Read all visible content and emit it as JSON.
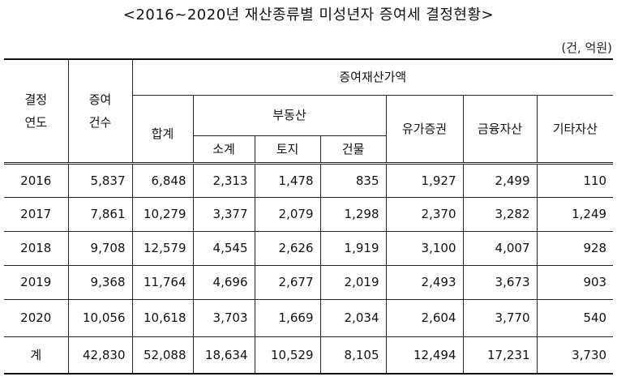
{
  "title": "<2016~2020년 재산종류별 미성년자 증여세 결정현황>",
  "unit": "(건, 억원)",
  "headers": {
    "year": [
      "결정",
      "연도"
    ],
    "count": [
      "증여",
      "건수"
    ],
    "property_value": "증여재산가액",
    "total": "합계",
    "real_estate": "부동산",
    "subtotal": "소계",
    "land": "토지",
    "building": "건물",
    "securities": "유가증권",
    "financial": "금융자산",
    "other": "기타자산"
  },
  "rows": [
    {
      "year": "2016",
      "count": "5,837",
      "total": "6,848",
      "subtotal": "2,313",
      "land": "1,478",
      "building": "835",
      "securities": "1,927",
      "financial": "2,499",
      "other": "110"
    },
    {
      "year": "2017",
      "count": "7,861",
      "total": "10,279",
      "subtotal": "3,377",
      "land": "2,079",
      "building": "1,298",
      "securities": "2,370",
      "financial": "3,282",
      "other": "1,249"
    },
    {
      "year": "2018",
      "count": "9,708",
      "total": "12,579",
      "subtotal": "4,545",
      "land": "2,626",
      "building": "1,919",
      "securities": "3,100",
      "financial": "4,007",
      "other": "928"
    },
    {
      "year": "2019",
      "count": "9,368",
      "total": "11,764",
      "subtotal": "4,696",
      "land": "2,677",
      "building": "2,019",
      "securities": "2,493",
      "financial": "3,673",
      "other": "903"
    },
    {
      "year": "2020",
      "count": "10,056",
      "total": "10,618",
      "subtotal": "3,703",
      "land": "1,669",
      "building": "2,034",
      "securities": "2,604",
      "financial": "3,770",
      "other": "540"
    },
    {
      "year": "계",
      "count": "42,830",
      "total": "52,088",
      "subtotal": "18,634",
      "land": "10,529",
      "building": "8,105",
      "securities": "12,494",
      "financial": "17,231",
      "other": "3,730"
    }
  ]
}
